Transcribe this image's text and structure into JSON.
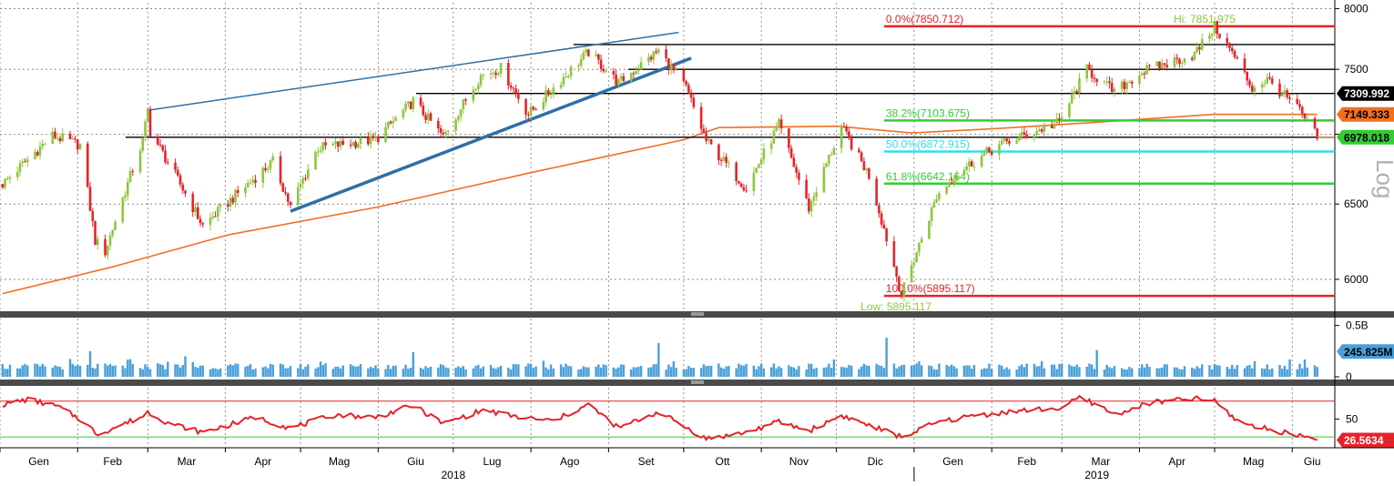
{
  "chart_data": [
    {
      "type": "candlestick",
      "panel": "price",
      "title": "",
      "xlabel": "",
      "ylabel": "",
      "ylim": [
        5800,
        8050
      ],
      "y_ticks": [
        6000,
        6500,
        7000,
        7500,
        8000
      ],
      "grid": true,
      "series": [
        {
          "name": "price",
          "kind": "candles",
          "color_up": "#8cc63f",
          "color_down": "#e3242b"
        },
        {
          "name": "moving-average",
          "kind": "line",
          "color": "#f07020"
        }
      ],
      "price_path": [
        [
          "2018-01-02",
          6640
        ],
        [
          "2018-01-22",
          6990
        ],
        [
          "2018-02-02",
          6920
        ],
        [
          "2018-02-08",
          6250
        ],
        [
          "2018-02-12",
          6180
        ],
        [
          "2018-02-27",
          6950
        ],
        [
          "2018-03-01",
          7180
        ],
        [
          "2018-03-02",
          7020
        ],
        [
          "2018-03-23",
          6350
        ],
        [
          "2018-04-20",
          6800
        ],
        [
          "2018-04-27",
          6480
        ],
        [
          "2018-05-08",
          6900
        ],
        [
          "2018-05-31",
          6960
        ],
        [
          "2018-06-15",
          7250
        ],
        [
          "2018-06-27",
          6980
        ],
        [
          "2018-07-12",
          7450
        ],
        [
          "2018-07-20",
          7510
        ],
        [
          "2018-07-31",
          7150
        ],
        [
          "2018-08-24",
          7640
        ],
        [
          "2018-09-05",
          7390
        ],
        [
          "2018-09-21",
          7650
        ],
        [
          "2018-10-02",
          7350
        ],
        [
          "2018-10-10",
          6950
        ],
        [
          "2018-10-26",
          6610
        ],
        [
          "2018-11-08",
          7070
        ],
        [
          "2018-11-20",
          6470
        ],
        [
          "2018-12-03",
          7050
        ],
        [
          "2018-12-14",
          6700
        ],
        [
          "2018-12-27",
          5900
        ],
        [
          "2019-01-10",
          6550
        ],
        [
          "2019-01-18",
          6720
        ],
        [
          "2019-02-04",
          6920
        ],
        [
          "2019-02-28",
          7090
        ],
        [
          "2019-03-11",
          7500
        ],
        [
          "2019-03-22",
          7320
        ],
        [
          "2019-04-02",
          7480
        ],
        [
          "2019-04-23",
          7620
        ],
        [
          "2019-05-01",
          7850
        ],
        [
          "2019-05-09",
          7600
        ],
        [
          "2019-05-16",
          7350
        ],
        [
          "2019-05-22",
          7420
        ],
        [
          "2019-06-03",
          7200
        ],
        [
          "2019-06-11",
          6978
        ]
      ],
      "moving_average": [
        [
          "2018-01-02",
          5910
        ],
        [
          "2018-02-15",
          6080
        ],
        [
          "2018-04-02",
          6290
        ],
        [
          "2018-06-01",
          6480
        ],
        [
          "2018-08-01",
          6720
        ],
        [
          "2018-10-01",
          6960
        ],
        [
          "2018-10-15",
          7050
        ],
        [
          "2018-12-01",
          7060
        ],
        [
          "2018-12-31",
          7010
        ],
        [
          "2019-02-01",
          7040
        ],
        [
          "2019-03-15",
          7090
        ],
        [
          "2019-05-01",
          7150
        ],
        [
          "2019-06-11",
          7149
        ]
      ],
      "horizontal_levels": [
        {
          "value": 7700,
          "color": "#000000"
        },
        {
          "value": 7500,
          "color": "#000000"
        },
        {
          "value": 7309.992,
          "color": "#000000"
        },
        {
          "value": 6978.018,
          "color": "#000000"
        }
      ],
      "fibonacci": [
        {
          "label": "0.0%(7850.712)",
          "value": 7850.712,
          "color": "#e3242b"
        },
        {
          "label": "38.2%(7103.675)",
          "value": 7103.675,
          "color": "#33cc33"
        },
        {
          "label": "50.0%(6872.915)",
          "value": 6872.915,
          "color": "#33ddee"
        },
        {
          "label": "61.8%(6642.164)",
          "value": 6642.164,
          "color": "#33cc33"
        },
        {
          "label": "100.0%(5895.117)",
          "value": 5895.117,
          "color": "#e3242b"
        }
      ],
      "trendlines": [
        {
          "from": [
            "2018-03-01",
            7180
          ],
          "to": [
            "2018-09-29",
            7800
          ],
          "color": "#2e6fa8",
          "width": "thin"
        },
        {
          "from": [
            "2018-04-27",
            6450
          ],
          "to": [
            "2018-10-04",
            7590
          ],
          "color": "#2e6fa8",
          "width": "thick"
        }
      ],
      "annotations": [
        {
          "text": "Hi: 7851.975",
          "x": "2019-05-01",
          "y": 7851.975,
          "color": "#8cc63f"
        },
        {
          "text": "Low: 5895.117",
          "x": "2018-12-27",
          "y": 5895.117,
          "color": "#8cc63f"
        }
      ],
      "price_labels": [
        {
          "text": "7309.992",
          "value": 7309.992,
          "bg": "#000000",
          "fg": "#ffffff"
        },
        {
          "text": "7149.333",
          "value": 7149.333,
          "bg": "#f07020",
          "fg": "#000000"
        },
        {
          "text": "6978.018",
          "value": 6978.018,
          "bg": "#33cc33",
          "fg": "#000000"
        }
      ],
      "watermark": "Log"
    },
    {
      "type": "bar",
      "panel": "volume",
      "ylim": [
        0,
        0.55
      ],
      "y_tick_labels": [
        {
          "text": "0.5B",
          "value": 0.5
        },
        {
          "text": "0",
          "value": 0
        }
      ],
      "color": "#4a9fd8",
      "last_label": {
        "text": "245.825M",
        "value": 0.245825,
        "bg": "#4a9fd8",
        "fg": "#000000"
      },
      "spikes": [
        [
          "2018-02-06",
          0.25
        ],
        [
          "2018-03-16",
          0.2
        ],
        [
          "2018-06-15",
          0.24
        ],
        [
          "2018-09-21",
          0.33
        ],
        [
          "2018-12-21",
          0.38
        ],
        [
          "2019-03-15",
          0.26
        ],
        [
          "2019-05-31",
          0.17
        ]
      ]
    },
    {
      "type": "line",
      "panel": "rsi",
      "ylim": [
        20,
        85
      ],
      "y_tick_labels": [
        {
          "text": "50",
          "value": 50
        }
      ],
      "bands": [
        {
          "value": 70,
          "color": "#e3242b"
        },
        {
          "value": 30,
          "color": "#33cc33"
        }
      ],
      "color": "#e3242b",
      "points": [
        [
          "2018-01-02",
          66
        ],
        [
          "2018-01-12",
          72
        ],
        [
          "2018-01-24",
          64
        ],
        [
          "2018-02-02",
          50
        ],
        [
          "2018-02-09",
          33
        ],
        [
          "2018-02-27",
          53
        ],
        [
          "2018-03-01",
          58
        ],
        [
          "2018-03-09",
          46
        ],
        [
          "2018-03-23",
          35
        ],
        [
          "2018-04-13",
          52
        ],
        [
          "2018-04-27",
          40
        ],
        [
          "2018-05-15",
          55
        ],
        [
          "2018-05-31",
          52
        ],
        [
          "2018-06-15",
          65
        ],
        [
          "2018-06-27",
          45
        ],
        [
          "2018-07-13",
          60
        ],
        [
          "2018-07-27",
          52
        ],
        [
          "2018-08-10",
          48
        ],
        [
          "2018-08-24",
          66
        ],
        [
          "2018-09-05",
          40
        ],
        [
          "2018-09-21",
          58
        ],
        [
          "2018-10-10",
          28
        ],
        [
          "2018-10-26",
          35
        ],
        [
          "2018-11-08",
          47
        ],
        [
          "2018-11-20",
          37
        ],
        [
          "2018-12-03",
          54
        ],
        [
          "2018-12-27",
          30
        ],
        [
          "2019-01-10",
          46
        ],
        [
          "2019-01-25",
          54
        ],
        [
          "2019-02-15",
          60
        ],
        [
          "2019-03-01",
          62
        ],
        [
          "2019-03-08",
          74
        ],
        [
          "2019-03-15",
          66
        ],
        [
          "2019-03-22",
          55
        ],
        [
          "2019-04-05",
          68
        ],
        [
          "2019-04-23",
          73
        ],
        [
          "2019-05-01",
          70
        ],
        [
          "2019-05-10",
          48
        ],
        [
          "2019-05-20",
          40
        ],
        [
          "2019-06-04",
          32
        ],
        [
          "2019-06-11",
          26.5634
        ]
      ],
      "last_label": {
        "text": "26.5634",
        "value": 26.5634,
        "bg": "#e3242b",
        "fg": "#ffffff"
      }
    }
  ],
  "x_axis": {
    "months": [
      {
        "label": "Gen",
        "date": "2018-01-01"
      },
      {
        "label": "Feb",
        "date": "2018-02-01"
      },
      {
        "label": "Mar",
        "date": "2018-03-01"
      },
      {
        "label": "Apr",
        "date": "2018-04-01"
      },
      {
        "label": "Mag",
        "date": "2018-05-01"
      },
      {
        "label": "Giu",
        "date": "2018-06-01"
      },
      {
        "label": "Lug",
        "date": "2018-07-01"
      },
      {
        "label": "Ago",
        "date": "2018-08-01"
      },
      {
        "label": "Set",
        "date": "2018-09-01"
      },
      {
        "label": "Ott",
        "date": "2018-10-01"
      },
      {
        "label": "Nov",
        "date": "2018-11-01"
      },
      {
        "label": "Dic",
        "date": "2018-12-01"
      },
      {
        "label": "Gen",
        "date": "2019-01-01"
      },
      {
        "label": "Feb",
        "date": "2019-02-01"
      },
      {
        "label": "Mar",
        "date": "2019-03-01"
      },
      {
        "label": "Apr",
        "date": "2019-04-01"
      },
      {
        "label": "Mag",
        "date": "2019-05-01"
      },
      {
        "label": "Giu",
        "date": "2019-06-01"
      }
    ],
    "years": [
      {
        "label": "2018",
        "date": "2018-07-01"
      },
      {
        "label": "2019",
        "date": "2019-03-15"
      }
    ]
  }
}
